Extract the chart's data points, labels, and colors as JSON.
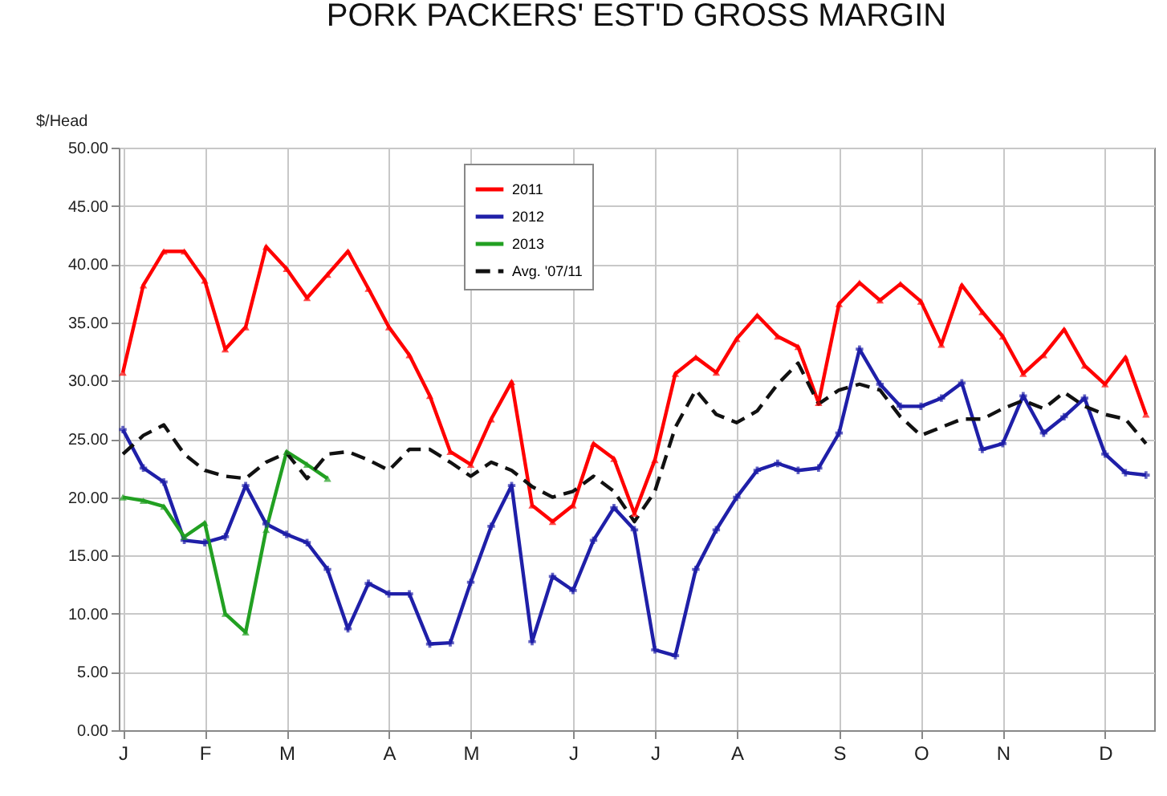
{
  "chart_data": {
    "type": "line",
    "title": "PORK PACKERS' EST'D GROSS MARGIN",
    "ylabel": "$/Head",
    "categories": [
      "J",
      null,
      null,
      null,
      "F",
      null,
      null,
      null,
      "M",
      null,
      null,
      null,
      null,
      "A",
      null,
      null,
      null,
      "M",
      null,
      null,
      null,
      null,
      "J",
      null,
      null,
      null,
      "J",
      null,
      null,
      null,
      "A",
      null,
      null,
      null,
      null,
      "S",
      null,
      null,
      null,
      "O",
      null,
      null,
      null,
      "N",
      null,
      null,
      null,
      null,
      "D",
      null,
      null
    ],
    "ylim": [
      0,
      50
    ],
    "yticks": [
      {
        "value": 0,
        "label": "0.00"
      },
      {
        "value": 5,
        "label": "5.00"
      },
      {
        "value": 10,
        "label": "10.00"
      },
      {
        "value": 15,
        "label": "15.00"
      },
      {
        "value": 20,
        "label": "20.00"
      },
      {
        "value": 25,
        "label": "25.00"
      },
      {
        "value": 30,
        "label": "30.00"
      },
      {
        "value": 35,
        "label": "35.00"
      },
      {
        "value": 40,
        "label": "40.00"
      },
      {
        "value": 45,
        "label": "45.00"
      },
      {
        "value": 50,
        "label": "50.00"
      }
    ],
    "grid": true,
    "legend": "top",
    "series": [
      {
        "name": "2011",
        "color": "#ff0000",
        "marker": "triangle",
        "line_style": "solid",
        "values": [
          30.7,
          38.2,
          41.1,
          41.1,
          38.6,
          32.7,
          34.6,
          41.5,
          39.6,
          37.1,
          39.1,
          41.1,
          37.9,
          34.6,
          32.2,
          28.7,
          23.9,
          22.8,
          26.7,
          29.9,
          19.3,
          17.9,
          19.3,
          24.6,
          23.3,
          18.6,
          23.2,
          30.6,
          32.0,
          30.7,
          33.6,
          35.6,
          33.8,
          32.9,
          28.1,
          36.6,
          38.4,
          36.9,
          38.3,
          36.8,
          33.1,
          38.2,
          35.9,
          33.8,
          30.6,
          32.2,
          34.4,
          31.3,
          29.7,
          32.0,
          27.1
        ]
      },
      {
        "name": "2012",
        "color": "#1f1fa8",
        "marker": "cross",
        "line_style": "solid",
        "values": [
          25.8,
          22.5,
          21.3,
          16.3,
          16.1,
          16.6,
          21.0,
          17.7,
          16.8,
          16.1,
          13.8,
          8.7,
          12.6,
          11.7,
          11.7,
          7.4,
          7.5,
          12.7,
          17.5,
          21.0,
          7.6,
          13.2,
          12.0,
          16.3,
          19.1,
          17.2,
          6.9,
          6.4,
          13.8,
          17.2,
          20.0,
          22.3,
          22.9,
          22.3,
          22.5,
          25.5,
          32.7,
          29.7,
          27.8,
          27.8,
          28.5,
          29.8,
          24.1,
          24.6,
          28.7,
          25.5,
          26.9,
          28.5,
          23.7,
          22.1,
          21.9
        ]
      },
      {
        "name": "2013",
        "color": "#22a022",
        "marker": "triangle",
        "line_style": "solid",
        "values": [
          20.0,
          19.7,
          19.2,
          16.6,
          17.8,
          10.0,
          8.4,
          17.2,
          23.9,
          22.8,
          21.6,
          null,
          null,
          null,
          null,
          null,
          null,
          null,
          null,
          null,
          null,
          null,
          null,
          null,
          null,
          null,
          null,
          null,
          null,
          null,
          null,
          null,
          null,
          null,
          null,
          null,
          null,
          null,
          null,
          null,
          null,
          null,
          null,
          null,
          null,
          null,
          null,
          null,
          null,
          null,
          null
        ]
      },
      {
        "name": "Avg. '07/11",
        "color": "#111111",
        "marker": "none",
        "line_style": "dashed",
        "values": [
          23.7,
          25.3,
          26.2,
          23.7,
          22.3,
          21.8,
          21.6,
          23.0,
          23.8,
          21.6,
          23.7,
          23.9,
          23.2,
          22.3,
          24.1,
          24.1,
          23.0,
          21.8,
          23.0,
          22.3,
          20.9,
          20.0,
          20.5,
          21.8,
          20.5,
          17.9,
          20.5,
          26.0,
          29.2,
          27.1,
          26.4,
          27.4,
          29.7,
          31.5,
          28.0,
          29.2,
          29.7,
          29.2,
          26.9,
          25.3,
          26.0,
          26.7,
          26.7,
          27.6,
          28.3,
          27.6,
          29.0,
          27.8,
          27.1,
          26.7,
          24.6
        ]
      }
    ]
  }
}
